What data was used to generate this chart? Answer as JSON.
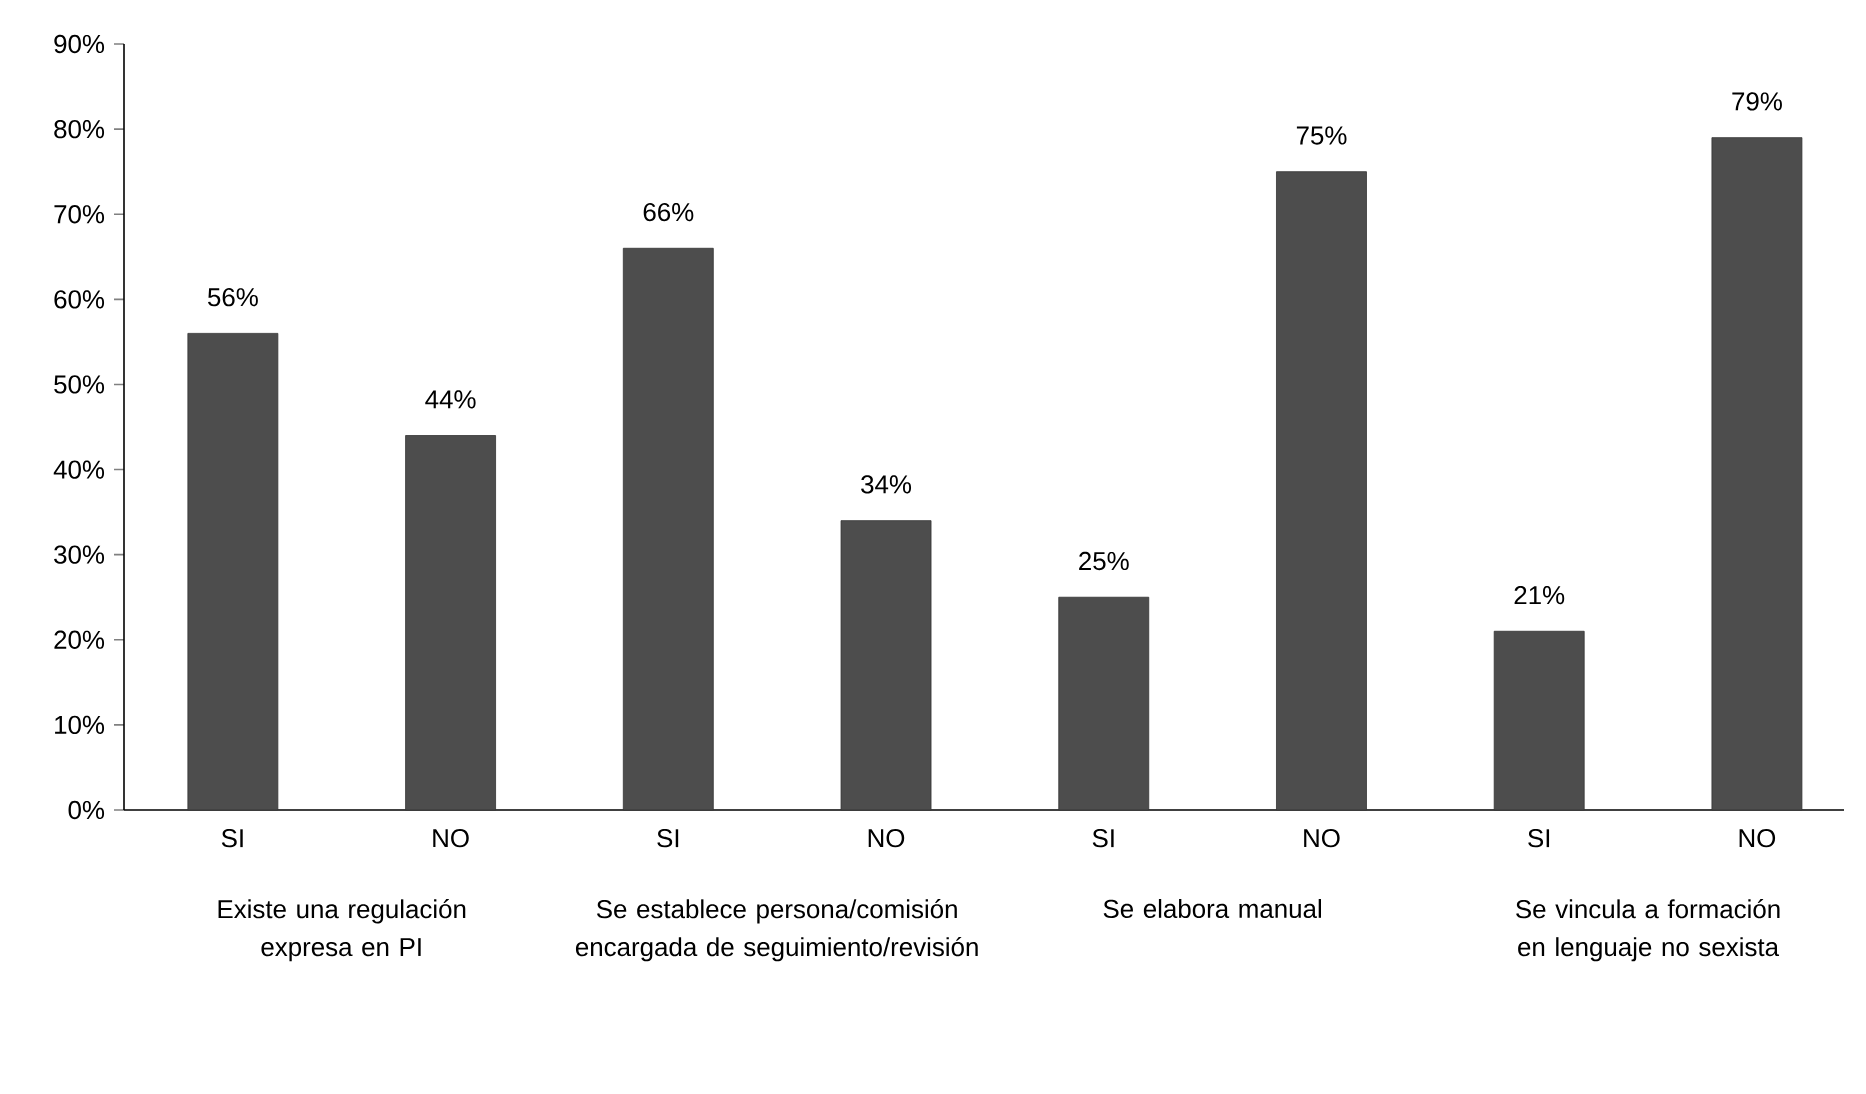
{
  "chart_data": {
    "type": "bar",
    "categories": [
      "SI",
      "NO",
      "SI",
      "NO",
      "SI",
      "NO",
      "SI",
      "NO"
    ],
    "values": [
      56,
      44,
      66,
      34,
      25,
      75,
      21,
      79
    ],
    "value_labels": [
      "56%",
      "44%",
      "66%",
      "34%",
      "25%",
      "75%",
      "21%",
      "79%"
    ],
    "color": "#4d4d4d",
    "ylim": [
      0,
      90
    ],
    "yticks": [
      {
        "value": 0,
        "label": "0%"
      },
      {
        "value": 10,
        "label": "10%"
      },
      {
        "value": 20,
        "label": "20%"
      },
      {
        "value": 30,
        "label": "30%"
      },
      {
        "value": 40,
        "label": "40%"
      },
      {
        "value": 50,
        "label": "50%"
      },
      {
        "value": 60,
        "label": "60%"
      },
      {
        "value": 70,
        "label": "70%"
      },
      {
        "value": 80,
        "label": "80%"
      },
      {
        "value": 90,
        "label": "90%"
      }
    ],
    "annotations": [
      "Existe una regulación expresa en PI",
      "Se establece persona/comisión encargada de seguimiento/revisión",
      "Se elabora manual",
      "Se vincula a formación en lenguaje no sexista"
    ]
  }
}
